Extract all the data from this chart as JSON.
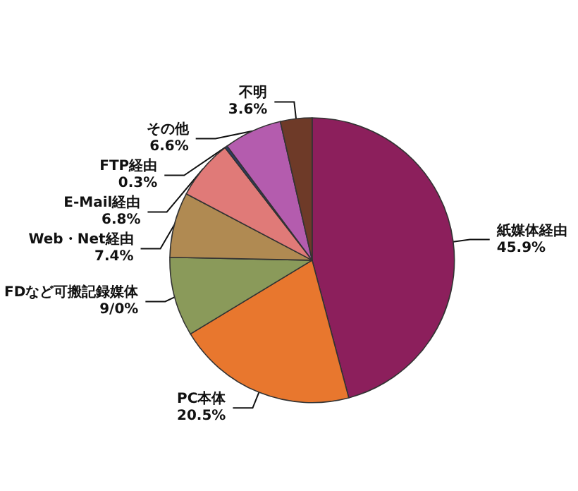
{
  "chart_data": {
    "type": "pie",
    "categories": [
      "紙媒体経由",
      "PC本体",
      "FDなど可搬記録媒体",
      "Web・Net経由",
      "E-Mail経由",
      "FTP経由",
      "その他",
      "不明"
    ],
    "values": [
      45.9,
      20.5,
      9.0,
      7.4,
      6.8,
      0.3,
      6.6,
      3.6
    ],
    "value_labels": [
      "45.9%",
      "20.5%",
      "9/0%",
      "7.4%",
      "6.8%",
      "0.3%",
      "6.6%",
      "3.6%"
    ],
    "colors": [
      "#8c1f5c",
      "#e8772e",
      "#8a9a5a",
      "#b08a52",
      "#e07a78",
      "#2a3a6a",
      "#b45cae",
      "#6e3a28"
    ]
  }
}
